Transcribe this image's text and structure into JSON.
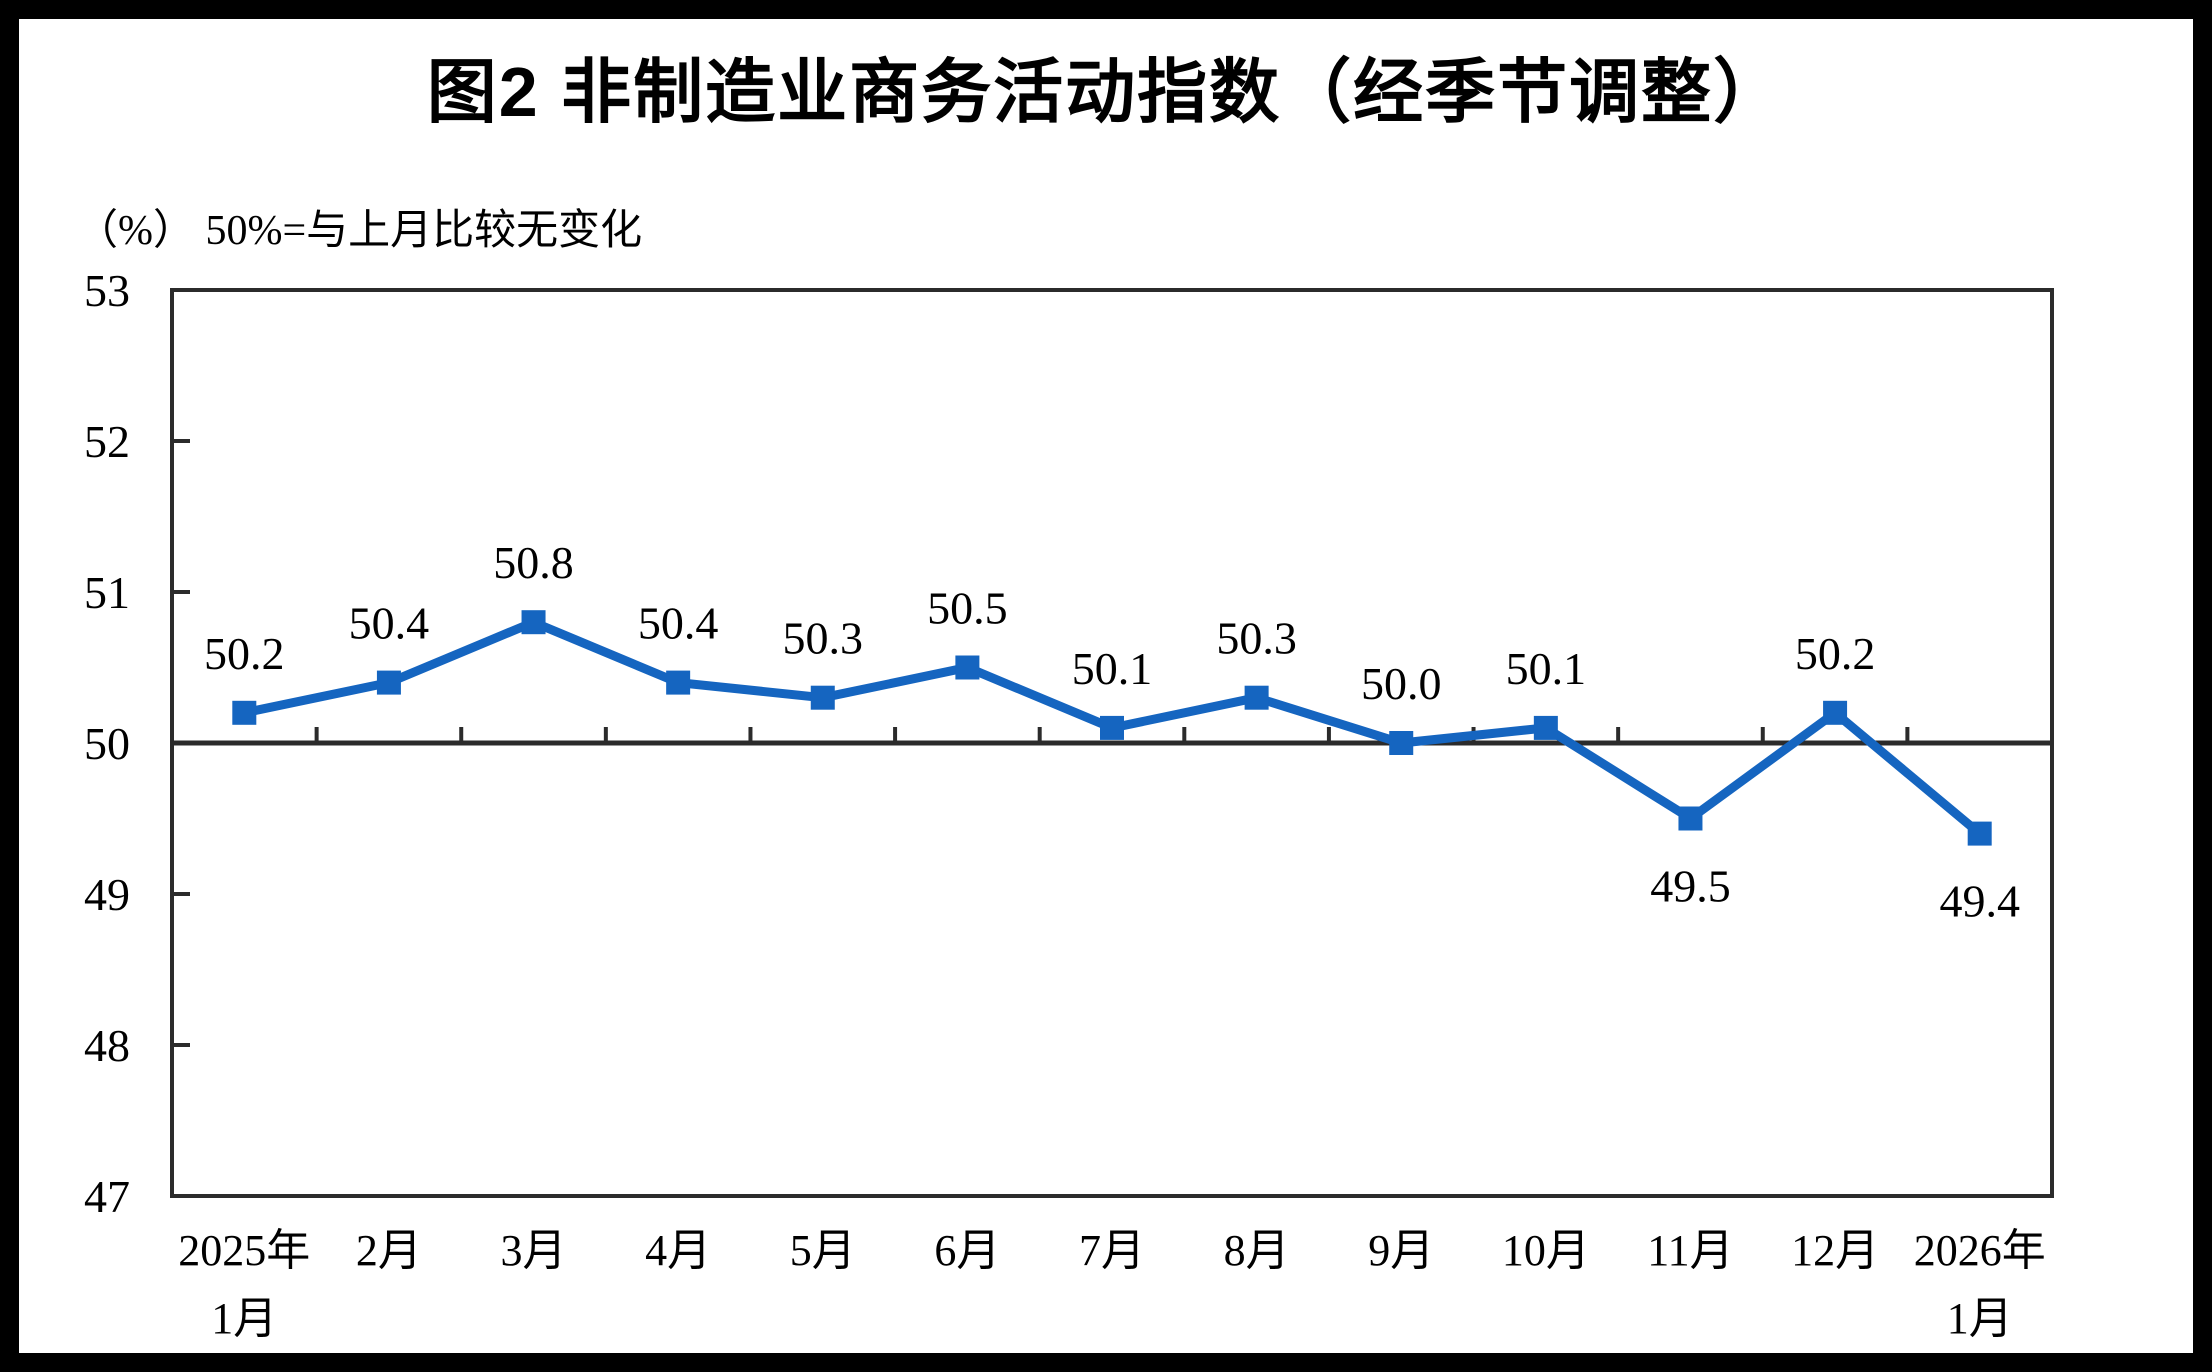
{
  "figure": {
    "frame_color": "#000000",
    "background": "#ffffff"
  },
  "chart_data": {
    "type": "line",
    "title": "图2  非制造业商务活动指数（经季节调整）",
    "unit_note": "（%） 50%=与上月比较无变化",
    "categories": [
      "2025年1月",
      "2月",
      "3月",
      "4月",
      "5月",
      "6月",
      "7月",
      "8月",
      "9月",
      "10月",
      "11月",
      "12月",
      "2026年1月"
    ],
    "category_label_lines": [
      [
        "2025年",
        "1月"
      ],
      [
        "2月"
      ],
      [
        "3月"
      ],
      [
        "4月"
      ],
      [
        "5月"
      ],
      [
        "6月"
      ],
      [
        "7月"
      ],
      [
        "8月"
      ],
      [
        "9月"
      ],
      [
        "10月"
      ],
      [
        "11月"
      ],
      [
        "12月"
      ],
      [
        "2026年",
        "1月"
      ]
    ],
    "values": [
      50.2,
      50.4,
      50.8,
      50.4,
      50.3,
      50.5,
      50.1,
      50.3,
      50.0,
      50.1,
      49.5,
      50.2,
      49.4
    ],
    "data_labels": [
      "50.2",
      "50.4",
      "50.8",
      "50.4",
      "50.3",
      "50.5",
      "50.1",
      "50.3",
      "50.0",
      "50.1",
      "49.5",
      "50.2",
      "49.4"
    ],
    "data_label_side": [
      "above",
      "above",
      "above",
      "above",
      "above",
      "above",
      "above",
      "above",
      "above",
      "above",
      "below",
      "above",
      "below"
    ],
    "ylim": [
      47,
      53
    ],
    "yticks": [
      53,
      52,
      51,
      50,
      49,
      48,
      47
    ],
    "reference_line_y": 50,
    "grid": "off",
    "legend": "none",
    "line_color": "#1565c0",
    "marker_shape": "square",
    "axis_color": "#2b2b2b",
    "text_color": "#000000"
  }
}
